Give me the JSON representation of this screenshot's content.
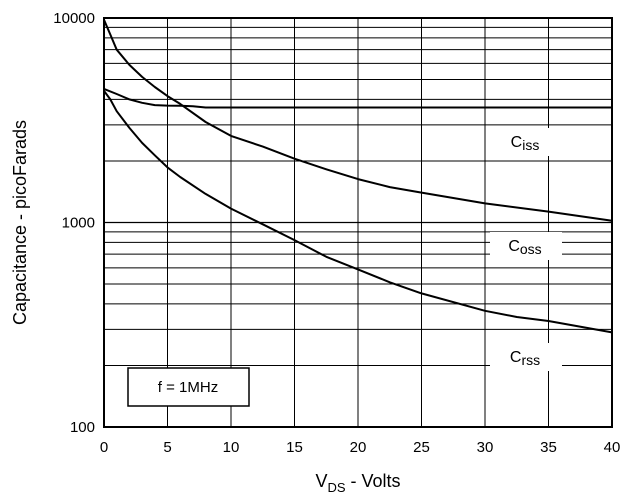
{
  "chart_data": {
    "type": "line",
    "title": "",
    "xlabel": {
      "main": "V",
      "sub": "DS",
      "rest": " - Volts"
    },
    "ylabel": "Capacitance - picoFarads",
    "xlim": [
      0,
      40
    ],
    "ylim": [
      100,
      10000
    ],
    "yscale": "log",
    "grid": true,
    "x_ticks": [
      "0",
      "5",
      "10",
      "15",
      "20",
      "25",
      "30",
      "35",
      "40"
    ],
    "y_ticks": [
      "100",
      "1000",
      "10000"
    ],
    "series": [
      {
        "label": {
          "main": "C",
          "sub": "iss"
        },
        "x": [
          0,
          1,
          2,
          3,
          4,
          5,
          6,
          7,
          8,
          9,
          10,
          15,
          20,
          25,
          30,
          35,
          40
        ],
        "y": [
          4500,
          4250,
          4000,
          3850,
          3750,
          3730,
          3720,
          3700,
          3650,
          3650,
          3650,
          3650,
          3650,
          3650,
          3650,
          3650,
          3650
        ]
      },
      {
        "label": {
          "main": "C",
          "sub": "oss"
        },
        "x": [
          0,
          0.5,
          1,
          2,
          3,
          4,
          5,
          6,
          8,
          10,
          12.5,
          15,
          17.5,
          20,
          22.5,
          25,
          30,
          35,
          40
        ],
        "y": [
          9800,
          8300,
          7000,
          5900,
          5150,
          4600,
          4150,
          3800,
          3100,
          2650,
          2350,
          2050,
          1820,
          1630,
          1490,
          1400,
          1240,
          1130,
          1020
        ]
      },
      {
        "label": {
          "main": "C",
          "sub": "rss"
        },
        "x": [
          0,
          0.5,
          1,
          2,
          3,
          4,
          5,
          6,
          8,
          10,
          12.5,
          15,
          17.5,
          20,
          22.5,
          25,
          30,
          32.5,
          35,
          40
        ],
        "y": [
          4400,
          4000,
          3500,
          2900,
          2450,
          2130,
          1860,
          1670,
          1380,
          1170,
          980,
          820,
          680,
          590,
          510,
          450,
          370,
          345,
          330,
          290
        ]
      }
    ],
    "annotation": "f = 1MHz"
  }
}
